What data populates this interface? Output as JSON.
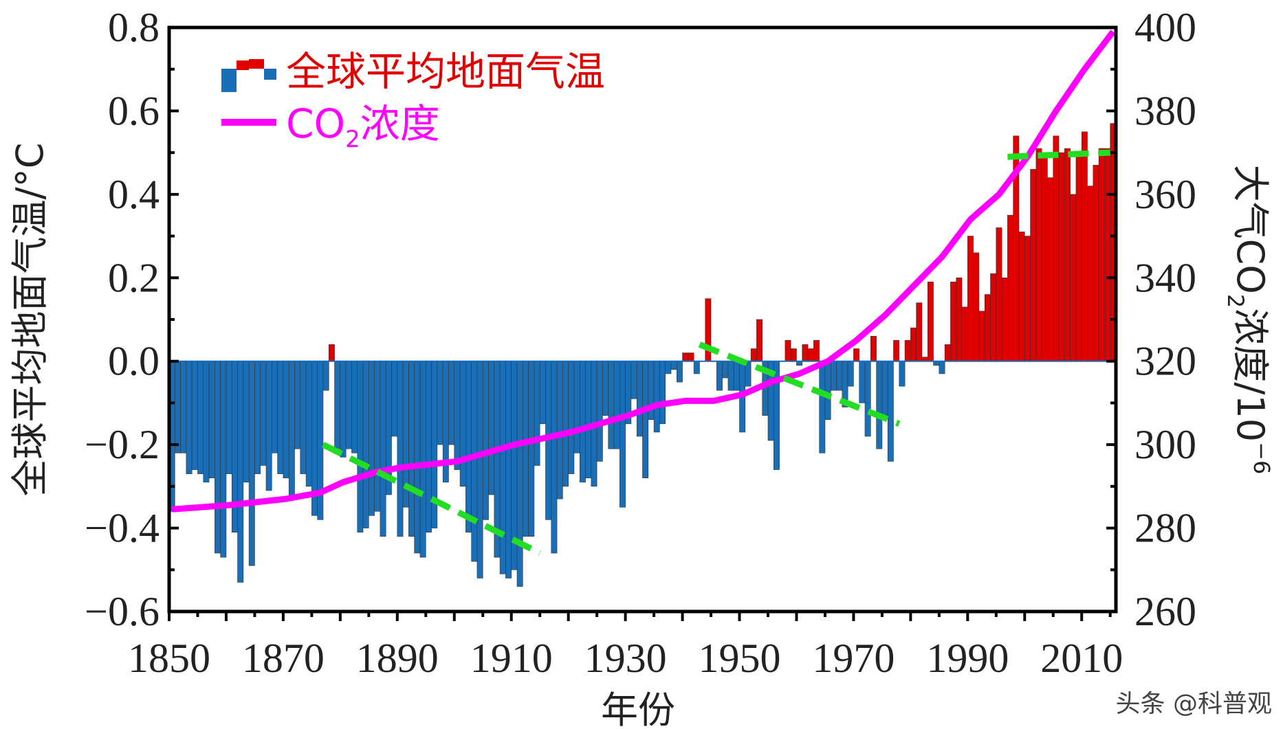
{
  "chart_data": {
    "type": "bar+line",
    "xlabel": "年份",
    "ylabel_left": "全球平均地面气温/°C",
    "ylabel_right_parts": [
      "大气CO",
      "2",
      "浓度/10",
      "−6"
    ],
    "ylim_left": [
      -0.6,
      0.8
    ],
    "ylim_right": [
      260,
      400
    ],
    "xlim": [
      1850,
      2015
    ],
    "x_ticks": [
      "1850",
      "1870",
      "1890",
      "1910",
      "1930",
      "1950",
      "1970",
      "1990",
      "2010"
    ],
    "y_left_ticks": [
      "−0.6",
      "−0.4",
      "−0.2",
      "0.0",
      "0.2",
      "0.4",
      "0.6",
      "0.8"
    ],
    "y_right_ticks": [
      "260",
      "280",
      "300",
      "320",
      "340",
      "360",
      "380",
      "400"
    ],
    "legend": {
      "placement": "top-left",
      "temp_label": "全球平均地面气温",
      "co2_label_parts": [
        "CO",
        "2",
        "浓度"
      ]
    },
    "colors": {
      "positive": "#e00000",
      "negative": "#1a6eb5",
      "co2": "#ff00ff",
      "trend": "#22dd22"
    },
    "temperature": {
      "start_year": 1850,
      "values": [
        -0.36,
        -0.22,
        -0.22,
        -0.27,
        -0.26,
        -0.27,
        -0.29,
        -0.28,
        -0.46,
        -0.47,
        -0.27,
        -0.41,
        -0.53,
        -0.29,
        -0.49,
        -0.27,
        -0.25,
        -0.31,
        -0.22,
        -0.27,
        -0.28,
        -0.33,
        -0.21,
        -0.27,
        -0.3,
        -0.37,
        -0.38,
        -0.07,
        0.04,
        -0.21,
        -0.23,
        -0.21,
        -0.22,
        -0.41,
        -0.4,
        -0.37,
        -0.36,
        -0.42,
        -0.32,
        -0.18,
        -0.42,
        -0.35,
        -0.42,
        -0.46,
        -0.47,
        -0.41,
        -0.4,
        -0.2,
        -0.29,
        -0.2,
        -0.26,
        -0.3,
        -0.41,
        -0.48,
        -0.52,
        -0.38,
        -0.32,
        -0.47,
        -0.51,
        -0.52,
        -0.5,
        -0.54,
        -0.42,
        -0.42,
        -0.25,
        -0.15,
        -0.38,
        -0.46,
        -0.33,
        -0.3,
        -0.27,
        -0.22,
        -0.29,
        -0.28,
        -0.3,
        -0.24,
        -0.13,
        -0.21,
        -0.21,
        -0.35,
        -0.15,
        -0.09,
        -0.18,
        -0.28,
        -0.14,
        -0.17,
        -0.15,
        -0.03,
        -0.02,
        -0.05,
        0.02,
        0.02,
        -0.03,
        0.0,
        0.15,
        0.0,
        -0.07,
        -0.04,
        -0.07,
        -0.07,
        -0.17,
        -0.06,
        0.03,
        0.1,
        -0.13,
        -0.19,
        -0.26,
        0.0,
        0.05,
        0.03,
        -0.01,
        0.04,
        0.03,
        0.05,
        -0.22,
        -0.14,
        -0.07,
        -0.07,
        -0.11,
        -0.06,
        0.03,
        -0.1,
        -0.18,
        0.06,
        -0.21,
        -0.13,
        -0.24,
        0.05,
        -0.06,
        0.05,
        0.08,
        0.14,
        0.01,
        0.19,
        -0.01,
        -0.03,
        0.04,
        0.19,
        0.2,
        0.13,
        0.3,
        0.26,
        0.12,
        0.16,
        0.21,
        0.32,
        0.2,
        0.35,
        0.54,
        0.31,
        0.3,
        0.46,
        0.51,
        0.5,
        0.44,
        0.54,
        0.5,
        0.51,
        0.4,
        0.5,
        0.55,
        0.42,
        0.47,
        0.51,
        0.51,
        0.57
      ]
    },
    "co2": {
      "x": [
        1850,
        1860,
        1870,
        1876,
        1880,
        1886,
        1890,
        1900,
        1910,
        1920,
        1930,
        1935,
        1940,
        1945,
        1950,
        1955,
        1960,
        1965,
        1970,
        1975,
        1980,
        1985,
        1990,
        1995,
        2000,
        2005,
        2010,
        2015
      ],
      "y": [
        284.5,
        285.5,
        287,
        288.5,
        291,
        293.5,
        294.5,
        296,
        300,
        303,
        307,
        309.5,
        310.5,
        310.5,
        312,
        315,
        317,
        320,
        325,
        331,
        338,
        345,
        354,
        360,
        369,
        380,
        390,
        399
      ]
    },
    "trend_lines": [
      {
        "x": [
          1877,
          1915
        ],
        "y": [
          -0.2,
          -0.46
        ]
      },
      {
        "x": [
          1943,
          1978
        ],
        "y": [
          0.04,
          -0.15
        ]
      },
      {
        "x": [
          1997,
          2015
        ],
        "y": [
          0.49,
          0.5
        ]
      }
    ]
  },
  "watermark": "头条 @科普观"
}
